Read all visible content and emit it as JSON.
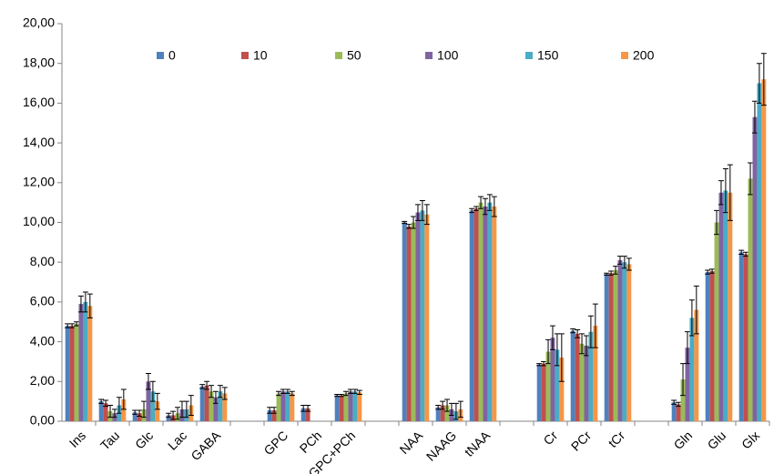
{
  "chart_data": {
    "type": "bar",
    "categories": [
      "Ins",
      "Tau",
      "Glc",
      "Lac",
      "GABA",
      null,
      "GPC",
      "PCh",
      "GPC+PCh",
      null,
      "NAA",
      "NAAG",
      "tNAA",
      null,
      "Cr",
      "PCr",
      "tCr",
      null,
      "Gln",
      "Glu",
      "Glx"
    ],
    "series": [
      {
        "name": "0",
        "color": "#4f81bd",
        "values": [
          4.8,
          1.0,
          0.45,
          0.3,
          1.75,
          null,
          0.55,
          0.65,
          1.3,
          null,
          10.0,
          0.7,
          10.6,
          null,
          2.85,
          4.55,
          7.4,
          null,
          0.95,
          7.5,
          8.5
        ],
        "errors": [
          0.1,
          0.1,
          0.1,
          0.1,
          0.1,
          null,
          0.15,
          0.15,
          0.05,
          null,
          0.05,
          0.1,
          0.1,
          null,
          0.05,
          0.1,
          0.05,
          null,
          0.1,
          0.1,
          0.1
        ]
      },
      {
        "name": "10",
        "color": "#c0504d",
        "values": [
          4.8,
          0.9,
          0.4,
          0.3,
          1.8,
          null,
          0.55,
          0.65,
          1.3,
          null,
          9.8,
          0.8,
          10.7,
          null,
          2.9,
          4.4,
          7.45,
          null,
          0.85,
          7.55,
          8.4
        ],
        "errors": [
          0.1,
          0.15,
          0.15,
          0.2,
          0.2,
          null,
          0.15,
          0.15,
          0.05,
          null,
          0.1,
          0.2,
          0.1,
          null,
          0.1,
          0.2,
          0.1,
          null,
          0.1,
          0.1,
          0.1
        ]
      },
      {
        "name": "50",
        "color": "#9bbb59",
        "values": [
          4.9,
          0.5,
          0.6,
          0.4,
          1.5,
          null,
          1.4,
          null,
          1.4,
          null,
          10.0,
          0.8,
          11.0,
          null,
          3.5,
          3.9,
          7.6,
          null,
          2.1,
          10.0,
          12.2
        ],
        "errors": [
          0.1,
          0.3,
          0.4,
          0.3,
          0.3,
          null,
          0.1,
          null,
          0.1,
          null,
          0.3,
          0.3,
          0.3,
          null,
          0.6,
          0.5,
          0.2,
          null,
          0.8,
          0.6,
          0.8
        ]
      },
      {
        "name": "100",
        "color": "#8064a2",
        "values": [
          5.9,
          0.4,
          2.0,
          0.6,
          1.2,
          null,
          1.5,
          null,
          1.5,
          null,
          10.5,
          0.6,
          10.8,
          null,
          4.2,
          3.8,
          8.1,
          null,
          3.7,
          11.5,
          15.3
        ],
        "errors": [
          0.4,
          0.2,
          0.4,
          0.4,
          0.3,
          null,
          0.1,
          null,
          0.1,
          null,
          0.4,
          0.3,
          0.4,
          null,
          0.6,
          0.5,
          0.2,
          null,
          0.8,
          0.6,
          0.8
        ]
      },
      {
        "name": "150",
        "color": "#4bacc6",
        "values": [
          6.0,
          0.8,
          1.5,
          0.6,
          1.5,
          null,
          1.5,
          null,
          1.5,
          null,
          10.6,
          0.5,
          11.0,
          null,
          3.6,
          4.5,
          8.0,
          null,
          5.2,
          11.6,
          17.0
        ],
        "errors": [
          0.5,
          0.4,
          0.5,
          0.4,
          0.3,
          null,
          0.1,
          null,
          0.1,
          null,
          0.5,
          0.4,
          0.4,
          null,
          0.8,
          0.8,
          0.3,
          null,
          0.9,
          1.1,
          1.0
        ]
      },
      {
        "name": "200",
        "color": "#f79646",
        "values": [
          5.8,
          1.1,
          1.0,
          0.8,
          1.4,
          null,
          1.4,
          null,
          1.45,
          null,
          10.4,
          0.6,
          10.8,
          null,
          3.2,
          4.8,
          7.9,
          null,
          5.6,
          11.5,
          17.2
        ],
        "errors": [
          0.6,
          0.5,
          0.4,
          0.5,
          0.3,
          null,
          0.1,
          null,
          0.1,
          null,
          0.5,
          0.4,
          0.5,
          null,
          1.2,
          1.1,
          0.3,
          null,
          1.2,
          1.4,
          1.3
        ]
      }
    ],
    "ylim": [
      0,
      20
    ],
    "yticks": [
      {
        "value": 0,
        "label": "0,00"
      },
      {
        "value": 2,
        "label": "2,00"
      },
      {
        "value": 4,
        "label": "4,00"
      },
      {
        "value": 6,
        "label": "6,00"
      },
      {
        "value": 8,
        "label": "8,00"
      },
      {
        "value": 10,
        "label": "10,00"
      },
      {
        "value": 12,
        "label": "12,00"
      },
      {
        "value": 14,
        "label": "14,00"
      },
      {
        "value": 16,
        "label": "16,00"
      },
      {
        "value": 18,
        "label": "18,00"
      },
      {
        "value": 20,
        "label": "20,00"
      }
    ],
    "grid": false,
    "legend": "top"
  }
}
